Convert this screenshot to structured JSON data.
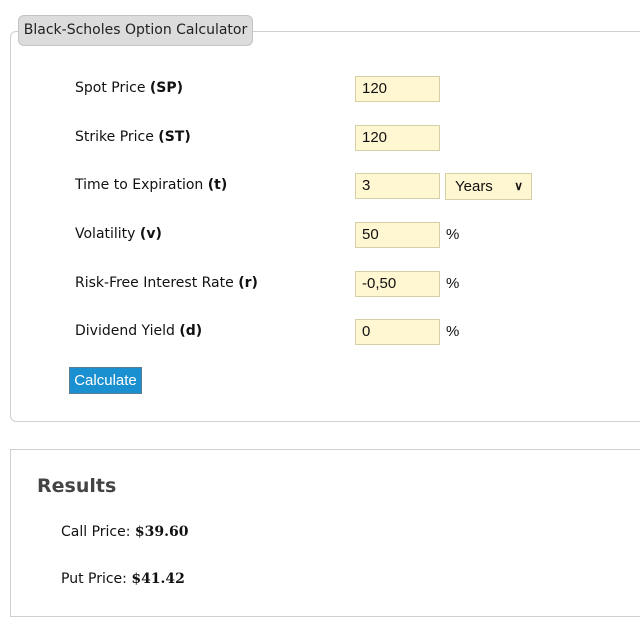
{
  "calculator": {
    "title": "Black-Scholes Option Calculator",
    "fields": [
      {
        "label": "Spot Price ",
        "symbol": "(SP)",
        "value": "120",
        "suffix": ""
      },
      {
        "label": "Strike Price ",
        "symbol": "(ST)",
        "value": "120",
        "suffix": ""
      },
      {
        "label": "Time to Expiration ",
        "symbol": "(t)",
        "value": "3",
        "suffix": ""
      },
      {
        "label": "Volatility ",
        "symbol": "(v)",
        "value": "50",
        "suffix": "%"
      },
      {
        "label": "Risk-Free Interest Rate ",
        "symbol": "(r)",
        "value": "-0,50",
        "suffix": "%"
      },
      {
        "label": "Dividend Yield ",
        "symbol": "(d)",
        "value": "0",
        "suffix": "%"
      }
    ],
    "time_unit": {
      "selected": "Years",
      "icon": "chevron-down-icon"
    },
    "calculate_label": "Calculate",
    "accent_color": "#1b90d0",
    "input_background": "#fff6d2"
  },
  "results": {
    "title": "Results",
    "call_label": "Call Price: ",
    "call_value": "$39.60",
    "put_label": "Put Price: ",
    "put_value": "$41.42"
  }
}
